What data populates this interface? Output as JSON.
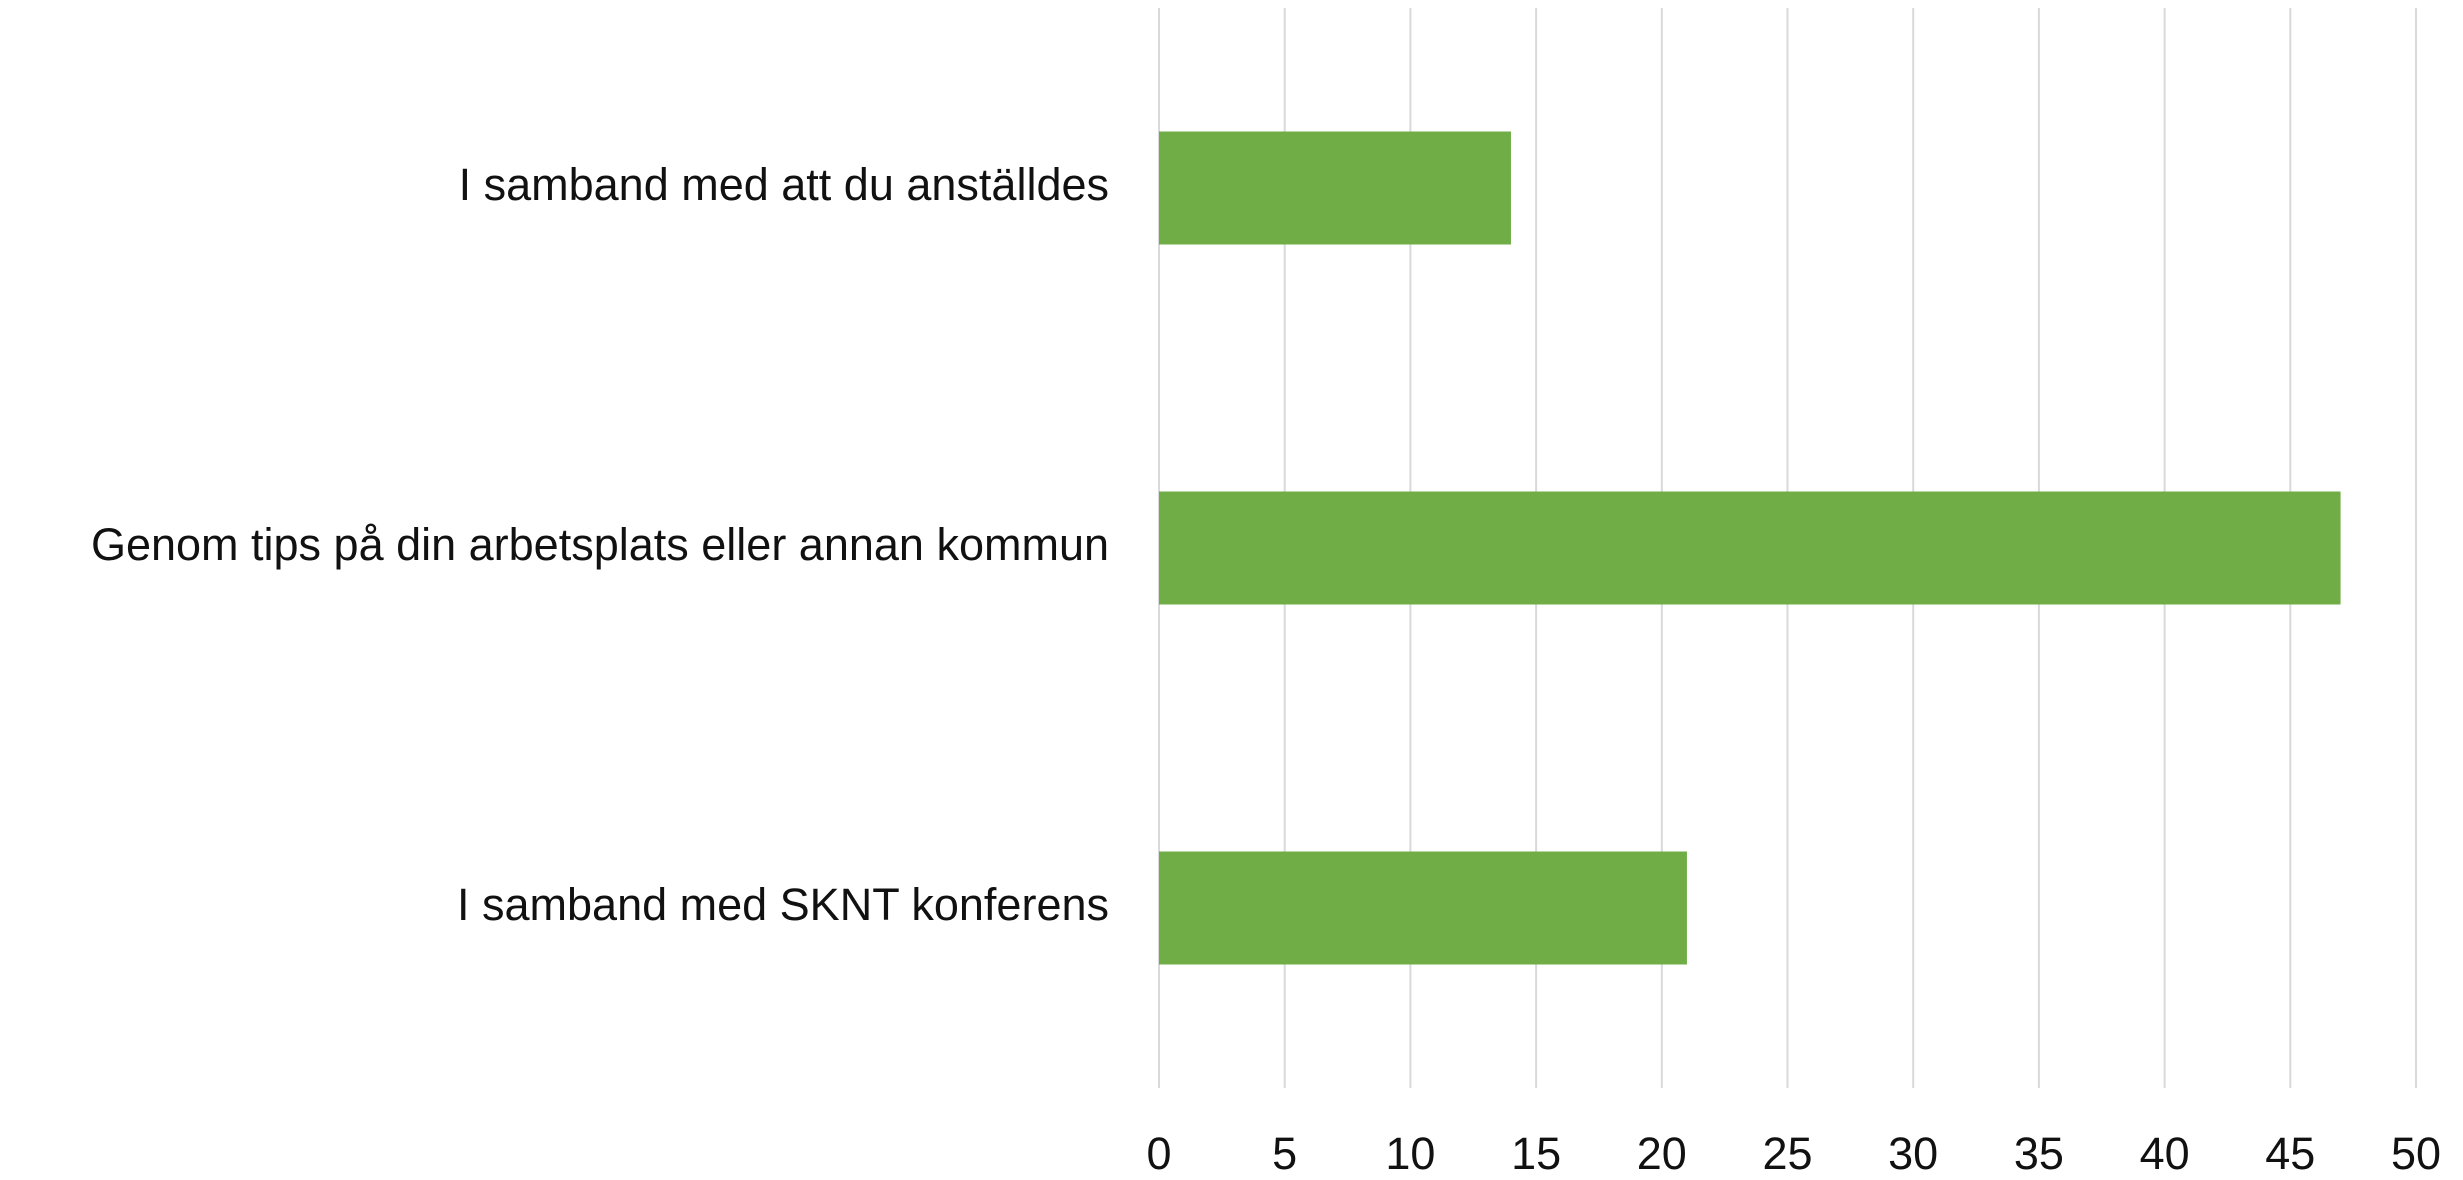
{
  "chart_data": {
    "type": "bar",
    "orientation": "horizontal",
    "categories": [
      "I samband med att du anställdes",
      "Genom tips på din arbetsplats eller annan kommun",
      "I samband med SKNT konferens"
    ],
    "values": [
      14,
      47,
      21
    ],
    "color": "#70ad47",
    "xlim": [
      0,
      50
    ],
    "xticks": [
      0,
      5,
      10,
      15,
      20,
      25,
      30,
      35,
      40,
      45,
      50
    ],
    "grid": true
  }
}
